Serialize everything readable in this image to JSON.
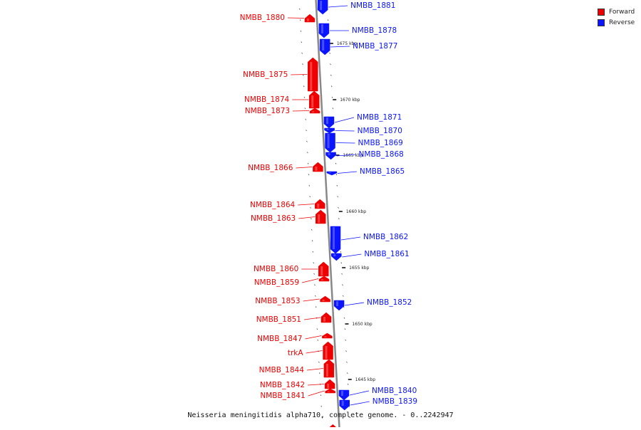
{
  "diagram": {
    "caption": "Neisseria meningitidis alpha710, complete genome. - 0..2242947",
    "colors": {
      "forward": "#ee0000",
      "reverse": "#0a14ff",
      "axis": "#888888"
    },
    "legend": [
      {
        "label": "Forward",
        "color": "#ee0000"
      },
      {
        "label": "Reverse",
        "color": "#0a14ff"
      }
    ],
    "scale_labels": [
      "1675 kbp",
      "1670 kbp",
      "1665 kbp",
      "1660 kbp",
      "1655 kbp",
      "1650 kbp",
      "1645 kbp"
    ],
    "genes": [
      {
        "label": "NMBB_1881",
        "strand": "reverse"
      },
      {
        "label": "NMBB_1880",
        "strand": "forward"
      },
      {
        "label": "NMBB_1878",
        "strand": "reverse"
      },
      {
        "label": "NMBB_1877",
        "strand": "reverse"
      },
      {
        "label": "NMBB_1875",
        "strand": "forward"
      },
      {
        "label": "NMBB_1874",
        "strand": "forward"
      },
      {
        "label": "NMBB_1873",
        "strand": "forward"
      },
      {
        "label": "NMBB_1871",
        "strand": "reverse"
      },
      {
        "label": "NMBB_1870",
        "strand": "reverse"
      },
      {
        "label": "NMBB_1869",
        "strand": "reverse"
      },
      {
        "label": "NMBB_1868",
        "strand": "reverse"
      },
      {
        "label": "NMBB_1866",
        "strand": "forward"
      },
      {
        "label": "NMBB_1865",
        "strand": "reverse"
      },
      {
        "label": "NMBB_1864",
        "strand": "forward"
      },
      {
        "label": "NMBB_1863",
        "strand": "forward"
      },
      {
        "label": "NMBB_1862",
        "strand": "reverse"
      },
      {
        "label": "NMBB_1861",
        "strand": "reverse"
      },
      {
        "label": "NMBB_1860",
        "strand": "forward"
      },
      {
        "label": "NMBB_1859",
        "strand": "forward"
      },
      {
        "label": "NMBB_1853",
        "strand": "forward"
      },
      {
        "label": "NMBB_1852",
        "strand": "reverse"
      },
      {
        "label": "NMBB_1851",
        "strand": "forward"
      },
      {
        "label": "NMBB_1847",
        "strand": "forward"
      },
      {
        "label": "trkA",
        "strand": "forward"
      },
      {
        "label": "NMBB_1844",
        "strand": "forward"
      },
      {
        "label": "NMBB_1842",
        "strand": "forward"
      },
      {
        "label": "NMBB_1841",
        "strand": "forward"
      },
      {
        "label": "NMBB_1840",
        "strand": "reverse"
      },
      {
        "label": "NMBB_1839",
        "strand": "reverse"
      }
    ]
  }
}
